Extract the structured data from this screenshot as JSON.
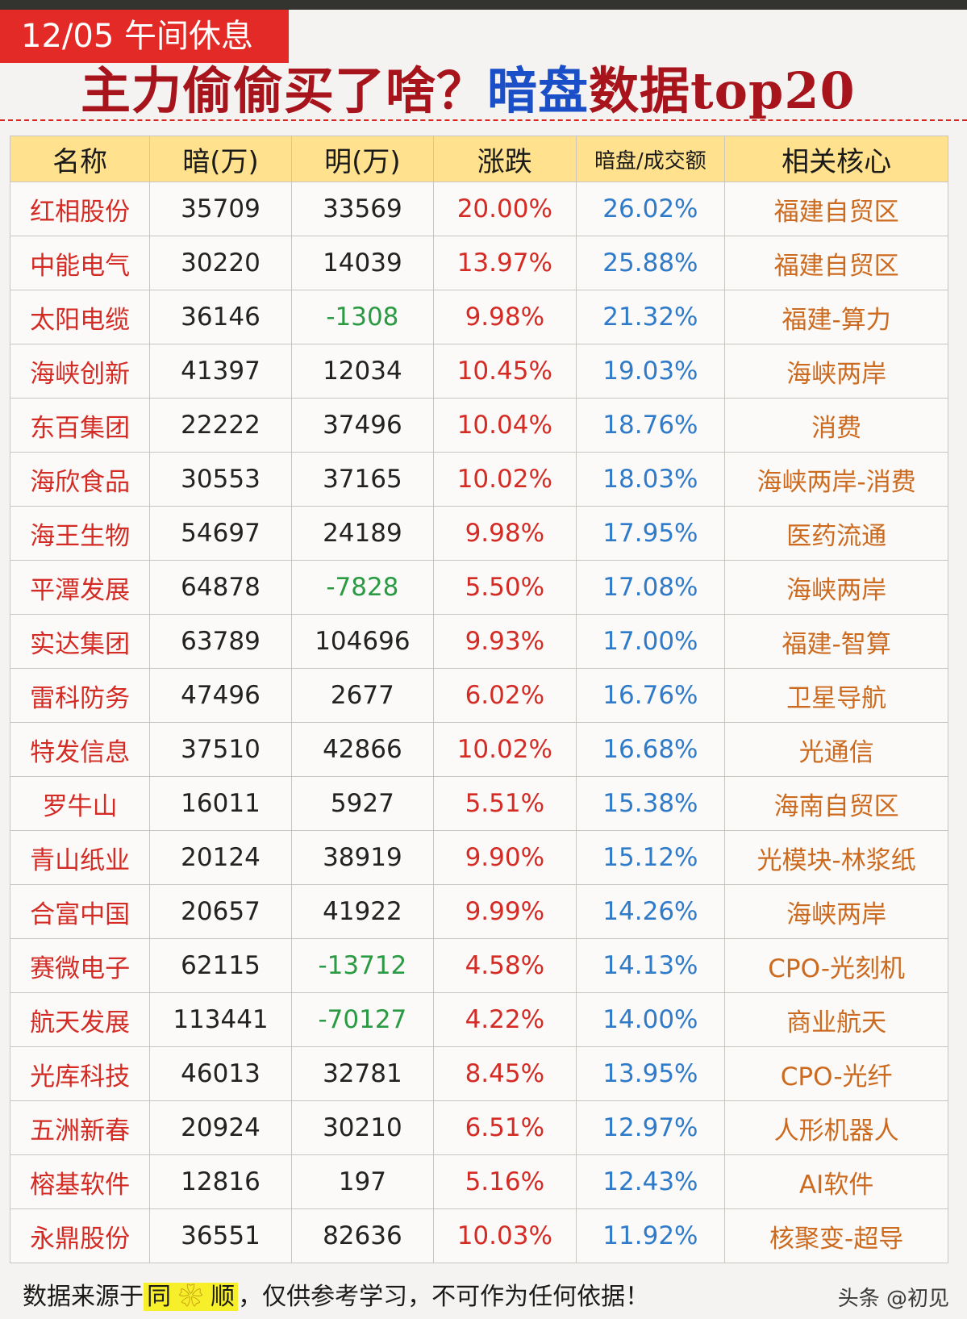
{
  "banner": {
    "date_label": "12/05 午间休息"
  },
  "headline": {
    "part1": "主力偷偷买了啥？",
    "part2": "暗盘",
    "part3": "数据top20"
  },
  "table": {
    "headers": [
      "名称",
      "暗(万)",
      "明(万)",
      "涨跌",
      "暗盘/成交额",
      "相关核心"
    ],
    "rows": [
      [
        "红相股份",
        "35709",
        "33569",
        "20.00%",
        "26.02%",
        "福建自贸区"
      ],
      [
        "中能电气",
        "30220",
        "14039",
        "13.97%",
        "25.88%",
        "福建自贸区"
      ],
      [
        "太阳电缆",
        "36146",
        "-1308",
        "9.98%",
        "21.32%",
        "福建-算力"
      ],
      [
        "海峡创新",
        "41397",
        "12034",
        "10.45%",
        "19.03%",
        "海峡两岸"
      ],
      [
        "东百集团",
        "22222",
        "37496",
        "10.04%",
        "18.76%",
        "消费"
      ],
      [
        "海欣食品",
        "30553",
        "37165",
        "10.02%",
        "18.03%",
        "海峡两岸-消费"
      ],
      [
        "海王生物",
        "54697",
        "24189",
        "9.98%",
        "17.95%",
        "医药流通"
      ],
      [
        "平潭发展",
        "64878",
        "-7828",
        "5.50%",
        "17.08%",
        "海峡两岸"
      ],
      [
        "实达集团",
        "63789",
        "104696",
        "9.93%",
        "17.00%",
        "福建-智算"
      ],
      [
        "雷科防务",
        "47496",
        "2677",
        "6.02%",
        "16.76%",
        "卫星导航"
      ],
      [
        "特发信息",
        "37510",
        "42866",
        "10.02%",
        "16.68%",
        "光通信"
      ],
      [
        "罗牛山",
        "16011",
        "5927",
        "5.51%",
        "15.38%",
        "海南自贸区"
      ],
      [
        "青山纸业",
        "20124",
        "38919",
        "9.90%",
        "15.12%",
        "光模块-林浆纸"
      ],
      [
        "合富中国",
        "20657",
        "41922",
        "9.99%",
        "14.26%",
        "海峡两岸"
      ],
      [
        "赛微电子",
        "62115",
        "-13712",
        "4.58%",
        "14.13%",
        "CPO-光刻机"
      ],
      [
        "航天发展",
        "113441",
        "-70127",
        "4.22%",
        "14.00%",
        "商业航天"
      ],
      [
        "光库科技",
        "46013",
        "32781",
        "8.45%",
        "13.95%",
        "CPO-光纤"
      ],
      [
        "五洲新春",
        "20924",
        "30210",
        "6.51%",
        "12.97%",
        "人形机器人"
      ],
      [
        "榕基软件",
        "12816",
        "197",
        "5.16%",
        "12.43%",
        "AI软件"
      ],
      [
        "永鼎股份",
        "36551",
        "82636",
        "10.03%",
        "11.92%",
        "核聚变-超导"
      ]
    ]
  },
  "footer": {
    "note_before": "数据来源于",
    "brand_left": "同",
    "brand_icon": "flower-icon",
    "brand_right": "顺",
    "note_after": "，仅供参考学习，不可作为任何依据！",
    "watermark": "头条 @初见"
  },
  "colors": {
    "accent_red": "#d42b25",
    "header_yellow": "#ffe18e",
    "ratio_blue": "#2f7bc9",
    "negative_green": "#2a9a43",
    "theme_orange": "#cc6a1f"
  }
}
